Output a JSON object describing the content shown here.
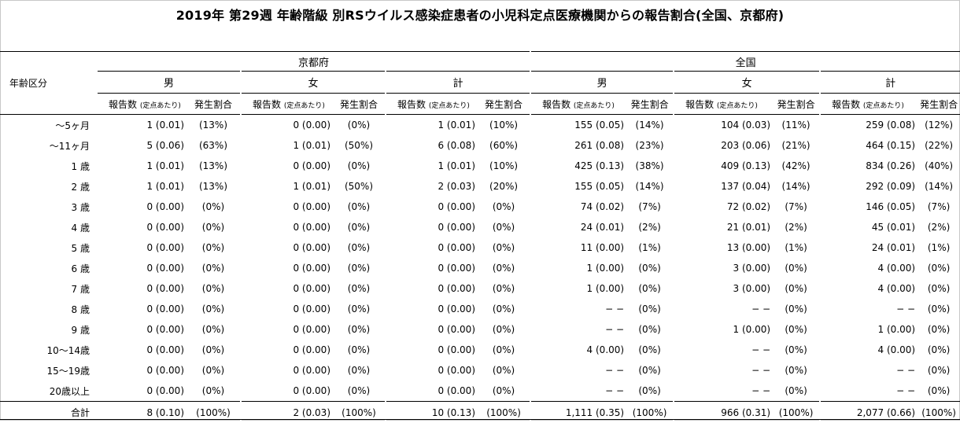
{
  "title": "2019年 第29週 年齢階級 別RSウイルス感染症患者の小児科定点医療機関からの報告割合(全国、京都府)",
  "header": {
    "age_label": "年齢区分",
    "regions": [
      "京都府",
      "全国"
    ],
    "sexes": [
      "男",
      "女",
      "計"
    ],
    "sub_count": "報告数",
    "sub_per": "(定点あたり)",
    "sub_pct": "発生割合"
  },
  "rows": [
    {
      "age": "〜5ヶ月",
      "cells": [
        [
          "1 (0.01)",
          "(13%)"
        ],
        [
          "0 (0.00)",
          "(0%)"
        ],
        [
          "1 (0.01)",
          "(10%)"
        ],
        [
          "155 (0.05)",
          "(14%)"
        ],
        [
          "104 (0.03)",
          "(11%)"
        ],
        [
          "259 (0.08)",
          "(12%)"
        ]
      ]
    },
    {
      "age": "〜11ヶ月",
      "cells": [
        [
          "5 (0.06)",
          "(63%)"
        ],
        [
          "1 (0.01)",
          "(50%)"
        ],
        [
          "6 (0.08)",
          "(60%)"
        ],
        [
          "261 (0.08)",
          "(23%)"
        ],
        [
          "203 (0.06)",
          "(21%)"
        ],
        [
          "464 (0.15)",
          "(22%)"
        ]
      ]
    },
    {
      "age": "1 歳",
      "cells": [
        [
          "1 (0.01)",
          "(13%)"
        ],
        [
          "0 (0.00)",
          "(0%)"
        ],
        [
          "1 (0.01)",
          "(10%)"
        ],
        [
          "425 (0.13)",
          "(38%)"
        ],
        [
          "409 (0.13)",
          "(42%)"
        ],
        [
          "834 (0.26)",
          "(40%)"
        ]
      ]
    },
    {
      "age": "2 歳",
      "cells": [
        [
          "1 (0.01)",
          "(13%)"
        ],
        [
          "1 (0.01)",
          "(50%)"
        ],
        [
          "2 (0.03)",
          "(20%)"
        ],
        [
          "155 (0.05)",
          "(14%)"
        ],
        [
          "137 (0.04)",
          "(14%)"
        ],
        [
          "292 (0.09)",
          "(14%)"
        ]
      ]
    },
    {
      "age": "3 歳",
      "cells": [
        [
          "0 (0.00)",
          "(0%)"
        ],
        [
          "0 (0.00)",
          "(0%)"
        ],
        [
          "0 (0.00)",
          "(0%)"
        ],
        [
          "74 (0.02)",
          "(7%)"
        ],
        [
          "72 (0.02)",
          "(7%)"
        ],
        [
          "146 (0.05)",
          "(7%)"
        ]
      ]
    },
    {
      "age": "4 歳",
      "cells": [
        [
          "0 (0.00)",
          "(0%)"
        ],
        [
          "0 (0.00)",
          "(0%)"
        ],
        [
          "0 (0.00)",
          "(0%)"
        ],
        [
          "24 (0.01)",
          "(2%)"
        ],
        [
          "21 (0.01)",
          "(2%)"
        ],
        [
          "45 (0.01)",
          "(2%)"
        ]
      ]
    },
    {
      "age": "5 歳",
      "cells": [
        [
          "0 (0.00)",
          "(0%)"
        ],
        [
          "0 (0.00)",
          "(0%)"
        ],
        [
          "0 (0.00)",
          "(0%)"
        ],
        [
          "11 (0.00)",
          "(1%)"
        ],
        [
          "13 (0.00)",
          "(1%)"
        ],
        [
          "24 (0.01)",
          "(1%)"
        ]
      ]
    },
    {
      "age": "6 歳",
      "cells": [
        [
          "0 (0.00)",
          "(0%)"
        ],
        [
          "0 (0.00)",
          "(0%)"
        ],
        [
          "0 (0.00)",
          "(0%)"
        ],
        [
          "1 (0.00)",
          "(0%)"
        ],
        [
          "3 (0.00)",
          "(0%)"
        ],
        [
          "4 (0.00)",
          "(0%)"
        ]
      ]
    },
    {
      "age": "7 歳",
      "cells": [
        [
          "0 (0.00)",
          "(0%)"
        ],
        [
          "0 (0.00)",
          "(0%)"
        ],
        [
          "0 (0.00)",
          "(0%)"
        ],
        [
          "1 (0.00)",
          "(0%)"
        ],
        [
          "3 (0.00)",
          "(0%)"
        ],
        [
          "4 (0.00)",
          "(0%)"
        ]
      ]
    },
    {
      "age": "8 歳",
      "cells": [
        [
          "0 (0.00)",
          "(0%)"
        ],
        [
          "0 (0.00)",
          "(0%)"
        ],
        [
          "0 (0.00)",
          "(0%)"
        ],
        [
          "− −",
          "(0%)"
        ],
        [
          "− −",
          "(0%)"
        ],
        [
          "− −",
          "(0%)"
        ]
      ]
    },
    {
      "age": "9 歳",
      "cells": [
        [
          "0 (0.00)",
          "(0%)"
        ],
        [
          "0 (0.00)",
          "(0%)"
        ],
        [
          "0 (0.00)",
          "(0%)"
        ],
        [
          "− −",
          "(0%)"
        ],
        [
          "1 (0.00)",
          "(0%)"
        ],
        [
          "1 (0.00)",
          "(0%)"
        ]
      ]
    },
    {
      "age": "10〜14歳",
      "cells": [
        [
          "0 (0.00)",
          "(0%)"
        ],
        [
          "0 (0.00)",
          "(0%)"
        ],
        [
          "0 (0.00)",
          "(0%)"
        ],
        [
          "4 (0.00)",
          "(0%)"
        ],
        [
          "− −",
          "(0%)"
        ],
        [
          "4 (0.00)",
          "(0%)"
        ]
      ]
    },
    {
      "age": "15〜19歳",
      "cells": [
        [
          "0 (0.00)",
          "(0%)"
        ],
        [
          "0 (0.00)",
          "(0%)"
        ],
        [
          "0 (0.00)",
          "(0%)"
        ],
        [
          "− −",
          "(0%)"
        ],
        [
          "− −",
          "(0%)"
        ],
        [
          "− −",
          "(0%)"
        ]
      ]
    },
    {
      "age": "20歳以上",
      "cells": [
        [
          "0 (0.00)",
          "(0%)"
        ],
        [
          "0 (0.00)",
          "(0%)"
        ],
        [
          "0 (0.00)",
          "(0%)"
        ],
        [
          "− −",
          "(0%)"
        ],
        [
          "− −",
          "(0%)"
        ],
        [
          "− −",
          "(0%)"
        ]
      ]
    }
  ],
  "total": {
    "age": "合計",
    "cells": [
      [
        "8 (0.10)",
        "(100%)"
      ],
      [
        "2 (0.03)",
        "(100%)"
      ],
      [
        "10 (0.13)",
        "(100%)"
      ],
      [
        "1,111 (0.35)",
        "(100%)"
      ],
      [
        "966 (0.31)",
        "(100%)"
      ],
      [
        "2,077 (0.66)",
        "(100%)"
      ]
    ]
  }
}
